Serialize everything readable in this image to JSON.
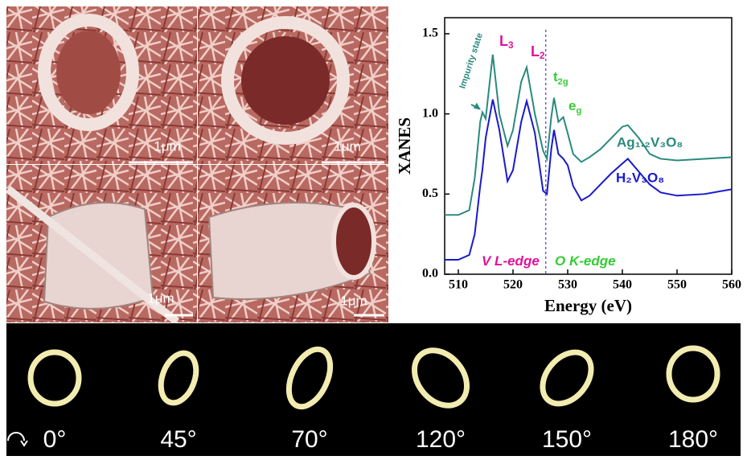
{
  "sem_panels": [
    {
      "scale_bar": "1μm"
    },
    {
      "scale_bar": "1μm"
    },
    {
      "scale_bar": "1μm"
    },
    {
      "scale_bar": "1μm"
    }
  ],
  "chart_data": {
    "type": "line",
    "x_label": "Energy (eV)",
    "y_label": "XANES",
    "x": [
      507.5,
      510,
      512,
      513,
      514,
      514.4,
      515,
      516.3,
      517.5,
      519,
      520,
      521.5,
      522.5,
      524,
      525.5,
      526.2,
      527,
      527.5,
      528.3,
      529.2,
      530,
      531,
      532.5,
      534,
      536,
      538,
      540,
      541,
      543,
      545,
      547,
      550,
      555,
      560
    ],
    "series": [
      {
        "name": "Ag₁.₂V₃O₈",
        "color": "#2a8a7e",
        "values": [
          0.37,
          0.37,
          0.4,
          0.6,
          0.95,
          1.01,
          0.97,
          1.37,
          1.0,
          0.8,
          0.9,
          1.2,
          1.29,
          1.0,
          0.77,
          0.72,
          0.98,
          1.1,
          0.95,
          0.98,
          0.88,
          0.75,
          0.7,
          0.73,
          0.78,
          0.85,
          0.92,
          0.93,
          0.85,
          0.75,
          0.72,
          0.71,
          0.72,
          0.73
        ]
      },
      {
        "name": "H₂V₃O₈",
        "color": "#1a1acc",
        "values": [
          0.09,
          0.09,
          0.12,
          0.25,
          0.55,
          0.65,
          0.85,
          1.09,
          0.9,
          0.58,
          0.65,
          0.95,
          1.08,
          0.88,
          0.52,
          0.5,
          0.78,
          0.9,
          0.75,
          0.72,
          0.68,
          0.55,
          0.46,
          0.49,
          0.56,
          0.63,
          0.69,
          0.72,
          0.64,
          0.56,
          0.51,
          0.49,
          0.5,
          0.53
        ]
      }
    ],
    "xlim": [
      507.5,
      560
    ],
    "ylim": [
      0,
      1.6
    ],
    "xticks": [
      510,
      520,
      530,
      540,
      550,
      560
    ],
    "yticks": [
      {
        "value": 0,
        "label": "0.0"
      },
      0.5,
      {
        "value": 1,
        "label": "1.0"
      },
      1.5
    ],
    "edge_energy": 526,
    "annotations": [
      {
        "text": "Impurity state",
        "color": "#2a8a7e"
      },
      {
        "text": "L",
        "sub": "3",
        "color": "#e0129c"
      },
      {
        "text": "L",
        "sub": "2",
        "color": "#e0129c"
      },
      {
        "text": "t",
        "sub": "2g",
        "color": "#33cc33"
      },
      {
        "text": "e",
        "sub": "g",
        "color": "#33cc33"
      },
      {
        "text": "V L-edge",
        "color": "#e0129c"
      },
      {
        "text": "O K-edge",
        "color": "#33cc33"
      }
    ]
  },
  "rotation": {
    "angles": [
      "0°",
      "45°",
      "70°",
      "120°",
      "150°",
      "180°"
    ]
  }
}
